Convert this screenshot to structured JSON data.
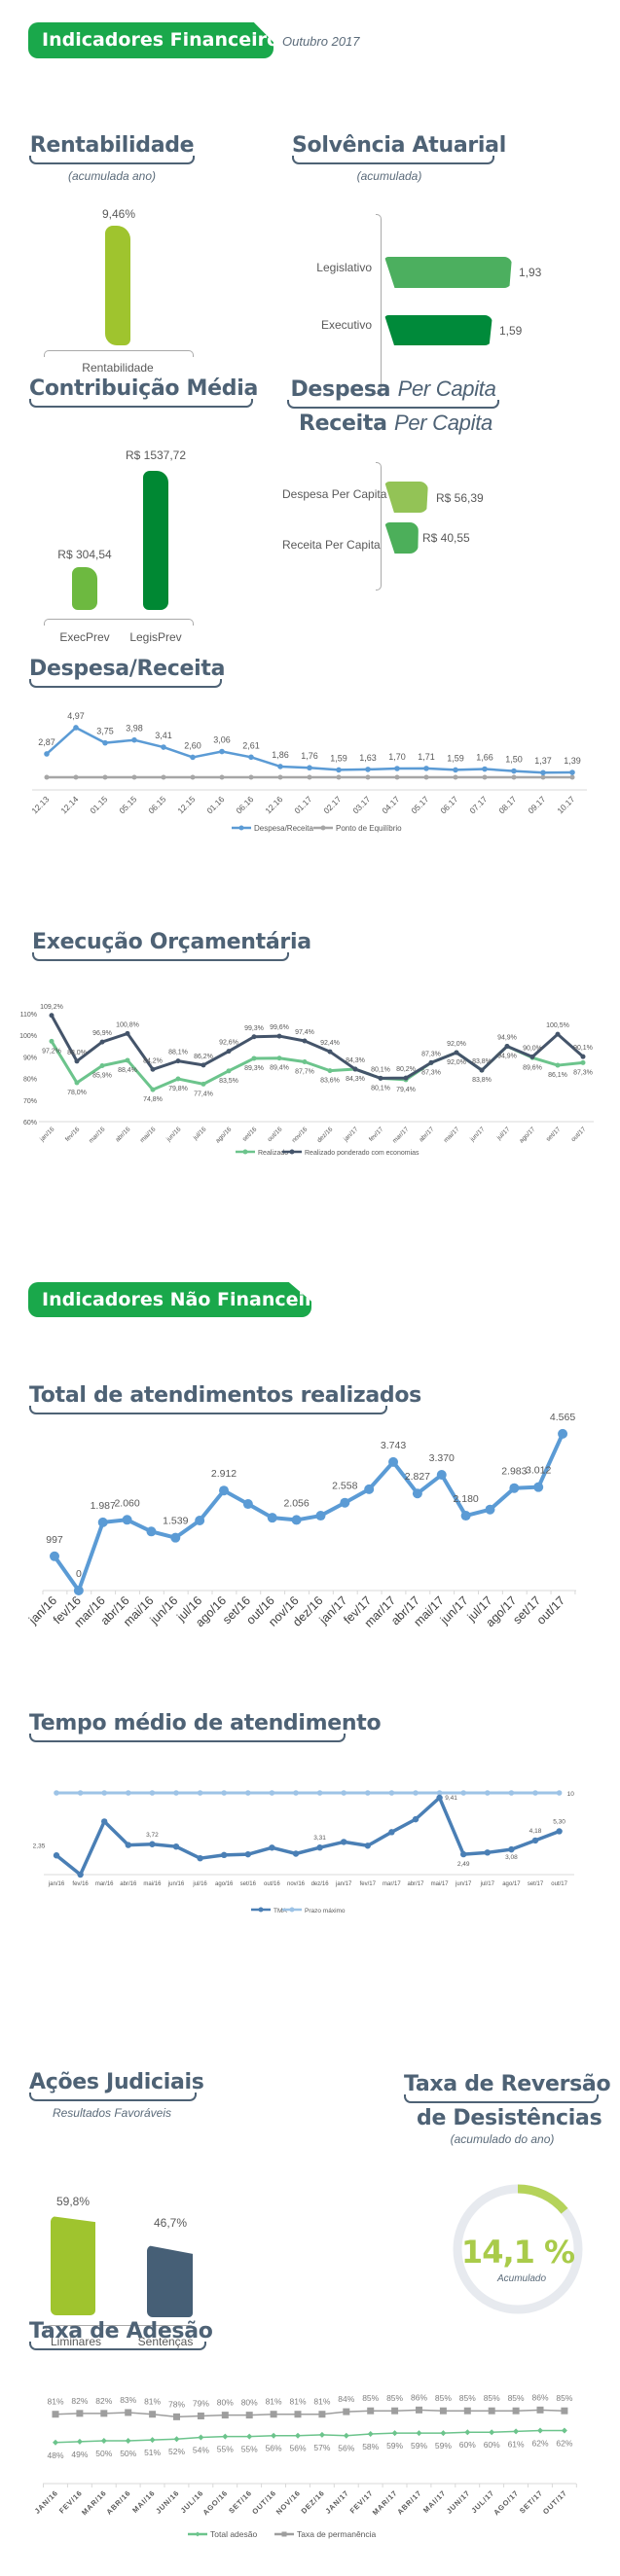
{
  "header": {
    "title": "Indicadores Financeiros",
    "period": "Outubro 2017"
  },
  "colors": {
    "brand_green": "#1aa84b",
    "title": "#4e6275"
  },
  "rentabilidade": {
    "title": "Rentabilidade",
    "subtitle": "(acumulada ano)",
    "value": 9.46,
    "value_label": "9,46%",
    "category": "Rentabilidade",
    "color": "#9fc42e"
  },
  "solvencia": {
    "title": "Solvência Atuarial",
    "subtitle": "(acumulada)",
    "items": [
      {
        "label": "Legislativo",
        "value": 1.93,
        "value_label": "1,93",
        "color": "#4caf5f"
      },
      {
        "label": "Executivo",
        "value": 1.59,
        "value_label": "1,59",
        "color": "#008a3a"
      }
    ]
  },
  "contribuicao": {
    "title": "Contribuição Média",
    "items": [
      {
        "label": "ExecPrev",
        "value": 304.54,
        "value_label": "R$ 304,54",
        "color": "#6db940"
      },
      {
        "label": "LegisPrev",
        "value": 1537.72,
        "value_label": "R$ 1537,72",
        "color": "#008833"
      }
    ]
  },
  "per_capita": {
    "title1_bold": "Despesa",
    "title1_italic": "Per Capita",
    "title2_bold": "Receita",
    "title2_italic": "Per Capita",
    "items": [
      {
        "label": "Despesa Per Capita",
        "value": 56.39,
        "value_label": "R$ 56,39",
        "color": "#93c356"
      },
      {
        "label": "Receita Per Capita",
        "value": 40.55,
        "value_label": "R$ 40,55",
        "color": "#4caf5a"
      }
    ]
  },
  "nonfin": {
    "title": "Indicadores Não Financeiros"
  },
  "acoes": {
    "title": "Ações Judiciais",
    "subtitle": "Resultados Favoráveis",
    "items": [
      {
        "label": "Liminares",
        "value": 59.8,
        "value_label": "59,8%",
        "color": "#9fc42e"
      },
      {
        "label": "Sentenças",
        "value": 46.7,
        "value_label": "46,7%",
        "color": "#465f76"
      }
    ]
  },
  "reversao": {
    "title1": "Taxa de Reversão",
    "title2": "de Desistências",
    "subtitle": "(acumulado do ano)",
    "value": 14.1,
    "value_label": "14,1 %",
    "caption": "Acumulado",
    "color": "#b5d35a",
    "track_color": "#e7eaef"
  },
  "chart_data": [
    {
      "type": "line",
      "title": "Despesa/Receita",
      "categories": [
        "12.13",
        "12.14",
        "01.15",
        "05.15",
        "06.15",
        "12.15",
        "01.16",
        "06.16",
        "12.16",
        "01.17",
        "02.17",
        "03.17",
        "04.17",
        "05.17",
        "06.17",
        "07.17",
        "08.17",
        "09.17",
        "10.17"
      ],
      "series": [
        {
          "name": "Despesa/Receita",
          "color": "#5b9bd5",
          "values": [
            2.87,
            4.97,
            3.75,
            3.98,
            3.41,
            2.6,
            3.06,
            2.61,
            1.86,
            1.76,
            1.59,
            1.63,
            1.7,
            1.71,
            1.59,
            1.66,
            1.5,
            1.37,
            1.39
          ]
        },
        {
          "name": "Ponto de Equilíbrio",
          "color": "#a6a6a6",
          "values": [
            1,
            1,
            1,
            1,
            1,
            1,
            1,
            1,
            1,
            1,
            1,
            1,
            1,
            1,
            1,
            1,
            1,
            1,
            1
          ]
        }
      ],
      "legend": "bottom",
      "grid": false
    },
    {
      "type": "line",
      "title": "Execução Orçamentária",
      "categories": [
        "jan/16",
        "fev/16",
        "mar/16",
        "abr/16",
        "mai/16",
        "jun/16",
        "jul/16",
        "ago/16",
        "set/16",
        "out/16",
        "nov/16",
        "dez/16",
        "jan/17",
        "fev/17",
        "mar/17",
        "abr/17",
        "mai/17",
        "jun/17",
        "jul/17",
        "ago/17",
        "set/17",
        "out/17"
      ],
      "yticks": [
        "60%",
        "70%",
        "80%",
        "90%",
        "100%",
        "110%"
      ],
      "ylim": [
        60,
        110
      ],
      "series": [
        {
          "name": "Realizado",
          "color": "#6cc48c",
          "values": [
            97.2,
            78.0,
            85.9,
            88.4,
            74.8,
            79.8,
            77.4,
            83.5,
            89.3,
            89.4,
            87.7,
            83.6,
            84.3,
            80.1,
            79.4,
            87.3,
            92.0,
            83.8,
            94.9,
            89.6,
            86.1,
            87.3
          ]
        },
        {
          "name": "Realizado ponderado com economias",
          "color": "#44546a",
          "values": [
            109.2,
            88.0,
            96.9,
            100.8,
            84.2,
            88.1,
            86.2,
            92.6,
            99.3,
            99.6,
            97.4,
            92.4,
            84.3,
            80.1,
            80.2,
            87.3,
            92.0,
            83.8,
            94.9,
            90.0,
            100.5,
            90.1
          ]
        }
      ],
      "legend": "bottom",
      "grid": false
    },
    {
      "type": "line",
      "title": "Total de atendimentos realizados",
      "categories": [
        "jan/16",
        "fev/16",
        "mar/16",
        "abr/16",
        "mai/16",
        "jun/16",
        "jul/16",
        "ago/16",
        "set/16",
        "out/16",
        "nov/16",
        "dez/16",
        "jan/17",
        "fev/17",
        "mar/17",
        "abr/17",
        "mai/17",
        "jun/17",
        "jul/17",
        "ago/17",
        "set/17",
        "out/17"
      ],
      "series": [
        {
          "color": "#5b9bd5",
          "values": [
            997,
            0,
            1987,
            2060,
            1720,
            1539,
            2040,
            2912,
            2520,
            2120,
            2056,
            2180,
            2558,
            2950,
            3743,
            2827,
            3370,
            2180,
            2360,
            2983,
            3012,
            4565
          ],
          "labeled_indices": [
            0,
            1,
            2,
            3,
            5,
            7,
            10,
            12,
            14,
            15,
            16,
            17,
            19,
            20,
            21
          ]
        }
      ],
      "legend": "none",
      "grid": false
    },
    {
      "type": "line",
      "title": "Tempo médio de atendimento",
      "categories": [
        "jan/16",
        "fev/16",
        "mar/16",
        "abr/16",
        "mai/16",
        "jun/16",
        "jul/16",
        "ago/16",
        "set/16",
        "out/16",
        "nov/16",
        "dez/16",
        "jan/17",
        "fev/17",
        "mar/17",
        "abr/17",
        "mai/17",
        "jun/17",
        "jul/17",
        "ago/17",
        "set/17",
        "out/17"
      ],
      "series": [
        {
          "name": "TMA",
          "color": "#4a7fb5",
          "values": [
            2.35,
            0,
            6.5,
            3.62,
            3.72,
            3.43,
            2.0,
            2.4,
            2.48,
            3.3,
            2.56,
            3.31,
            4.0,
            3.54,
            5.2,
            6.77,
            9.41,
            2.49,
            2.7,
            3.08,
            4.18,
            5.3
          ],
          "labeled_indices": [
            0,
            4,
            11,
            16,
            17,
            19,
            20,
            21
          ]
        },
        {
          "name": "Prazo máximo",
          "color": "#9dc3e6",
          "values": [
            10,
            10,
            10,
            10,
            10,
            10,
            10,
            10,
            10,
            10,
            10,
            10,
            10,
            10,
            10,
            10,
            10,
            10,
            10,
            10,
            10,
            10
          ],
          "labeled_indices": [
            21
          ]
        }
      ],
      "legend": "bottom",
      "grid": false
    },
    {
      "type": "line",
      "title": "Taxa de Adesão",
      "categories": [
        "JAN/16",
        "FEV/16",
        "MAR/16",
        "ABR/16",
        "MAI/16",
        "JUN/16",
        "JUL/16",
        "AGO/16",
        "SET/16",
        "OUT/16",
        "NOV/16",
        "DEZ/16",
        "JAN/17",
        "FEV/17",
        "MAR/17",
        "ABR/17",
        "MAI/17",
        "JUN/17",
        "JUL/17",
        "AGO/17",
        "SET/17",
        "OUT/17"
      ],
      "series": [
        {
          "name": "Total adesão",
          "color": "#6cc48c",
          "marker": "diamond",
          "values": [
            48,
            49,
            50,
            50,
            51,
            52,
            54,
            55,
            55,
            56,
            56,
            57,
            56,
            58,
            59,
            59,
            59,
            60,
            60,
            61,
            62,
            62
          ]
        },
        {
          "name": "Taxa de permanência",
          "color": "#9e9e9e",
          "marker": "square",
          "values": [
            81,
            82,
            82,
            83,
            81,
            78,
            79,
            80,
            80,
            81,
            81,
            81,
            84,
            85,
            85,
            86,
            85,
            85,
            85,
            85,
            86,
            85
          ]
        }
      ],
      "legend": "bottom",
      "grid": false
    }
  ]
}
